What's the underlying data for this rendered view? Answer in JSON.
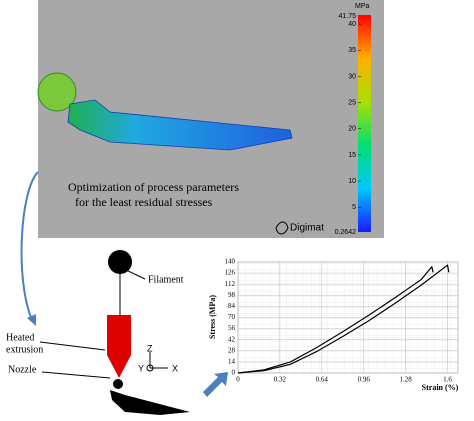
{
  "simulation": {
    "colorbar": {
      "unit": "MPa",
      "max": 41.75,
      "min": 0.2642,
      "ticks": [
        40,
        35,
        30,
        25,
        20,
        15,
        10,
        5
      ]
    },
    "caption": [
      "Optimization of process parameters",
      "for the least residual stresses"
    ],
    "brand": "Digimat"
  },
  "schematic": {
    "labels": {
      "filament": "Filament",
      "heated": "Heated",
      "extrusion": "extrusion",
      "nozzle": "Nozzle"
    },
    "axes": {
      "z": "Z",
      "y": "Y",
      "x": "X"
    }
  },
  "chart": {
    "type": "line",
    "x_label": "Strain (%)",
    "y_label": "Stress (MPa)",
    "xlim": [
      0,
      1.68
    ],
    "ylim": [
      0,
      140
    ],
    "xticks": [
      0,
      0.32,
      0.64,
      0.96,
      1.28,
      1.6
    ],
    "yticks": [
      0,
      14,
      28,
      42,
      56,
      70,
      84,
      98,
      112,
      126,
      140
    ],
    "grid": true,
    "series": [
      {
        "color": "#000000",
        "x": [
          0,
          0.2,
          0.4,
          0.6,
          0.8,
          1.0,
          1.2,
          1.4,
          1.48,
          1.49
        ],
        "values": [
          0,
          4,
          14,
          32,
          52,
          73,
          95,
          118,
          134,
          127
        ]
      },
      {
        "color": "#000000",
        "x": [
          0,
          0.2,
          0.4,
          0.6,
          0.8,
          1.0,
          1.2,
          1.4,
          1.6,
          1.61
        ],
        "values": [
          0,
          3,
          11,
          27,
          46,
          66,
          88,
          111,
          136,
          127
        ]
      }
    ]
  }
}
